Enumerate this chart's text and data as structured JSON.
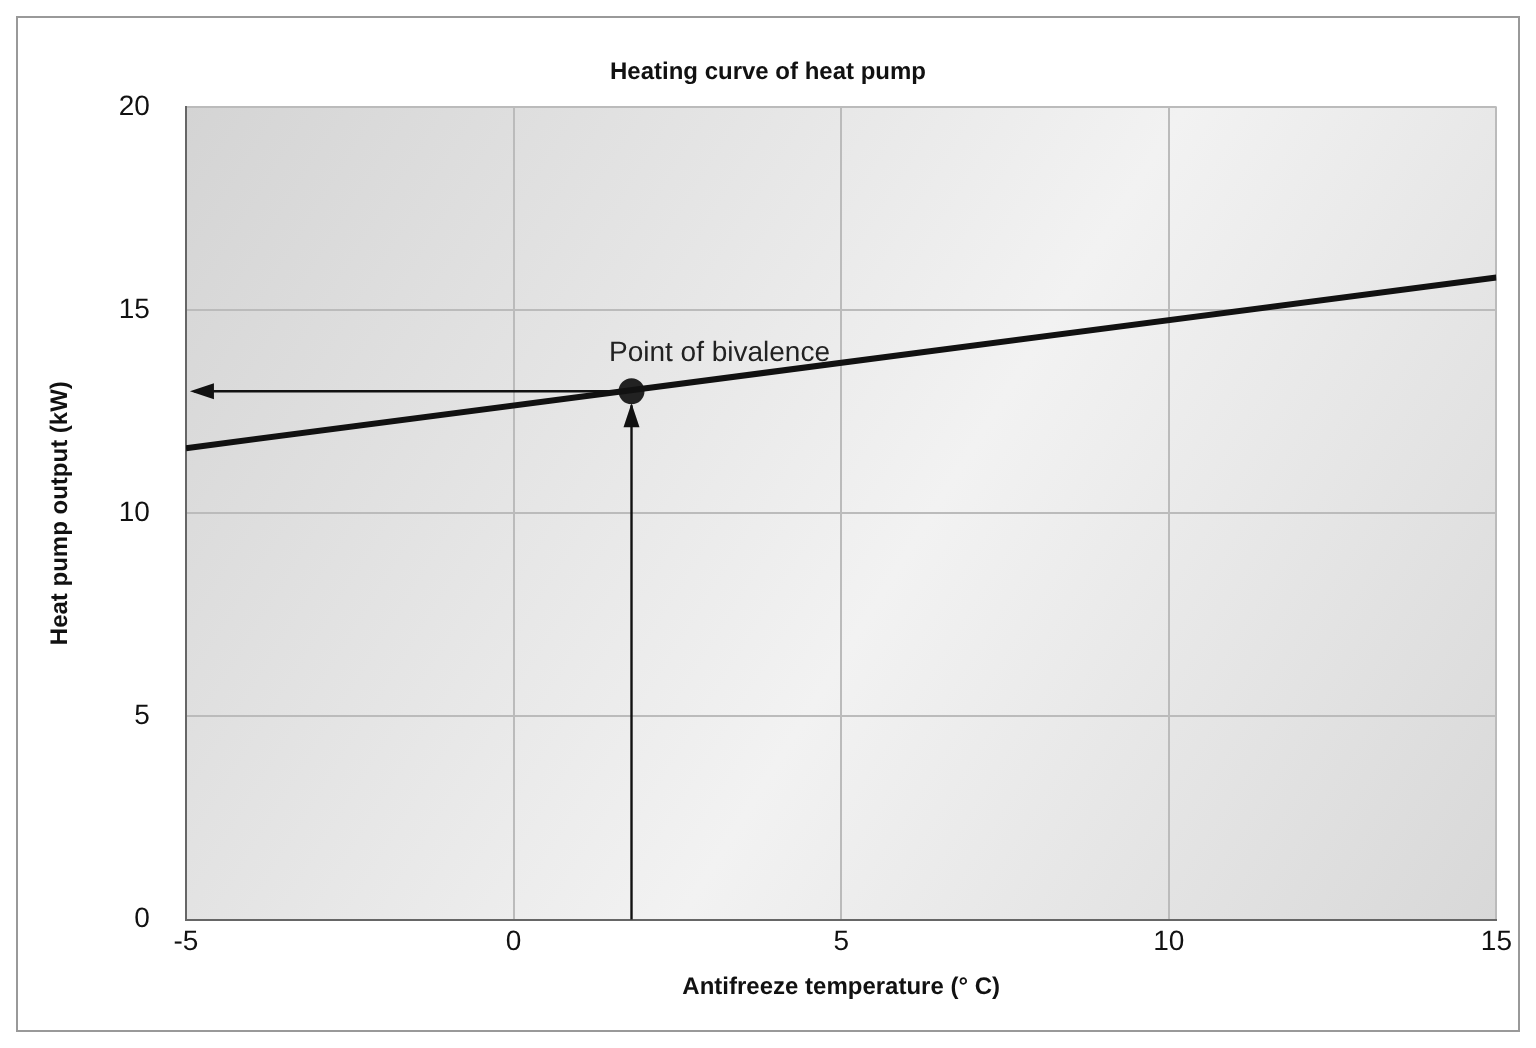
{
  "chart_data": {
    "type": "line",
    "title": "Heating curve of heat pump",
    "xlabel": "Antifreeze temperature (° C)",
    "ylabel": "Heat pump output (kW)",
    "x": [
      -5,
      15
    ],
    "series": [
      {
        "color": "#111111",
        "marker": "none",
        "values": [
          11.6,
          15.8
        ]
      },
      {
        "type": "scatter",
        "color": "#222222",
        "marker": "circle",
        "x": [
          1.8
        ],
        "values": [
          13
        ]
      }
    ],
    "annotations": [
      {
        "text": "Point of bivalence",
        "x": 1.8,
        "y": 13
      }
    ],
    "xlim": [
      -5,
      15
    ],
    "xticks": [
      -5,
      0,
      5,
      10,
      15
    ],
    "ylim": [
      0,
      20
    ],
    "yticks": [
      0,
      5,
      10,
      15,
      20
    ],
    "grid": true,
    "legend": false,
    "line_style": "solid"
  }
}
